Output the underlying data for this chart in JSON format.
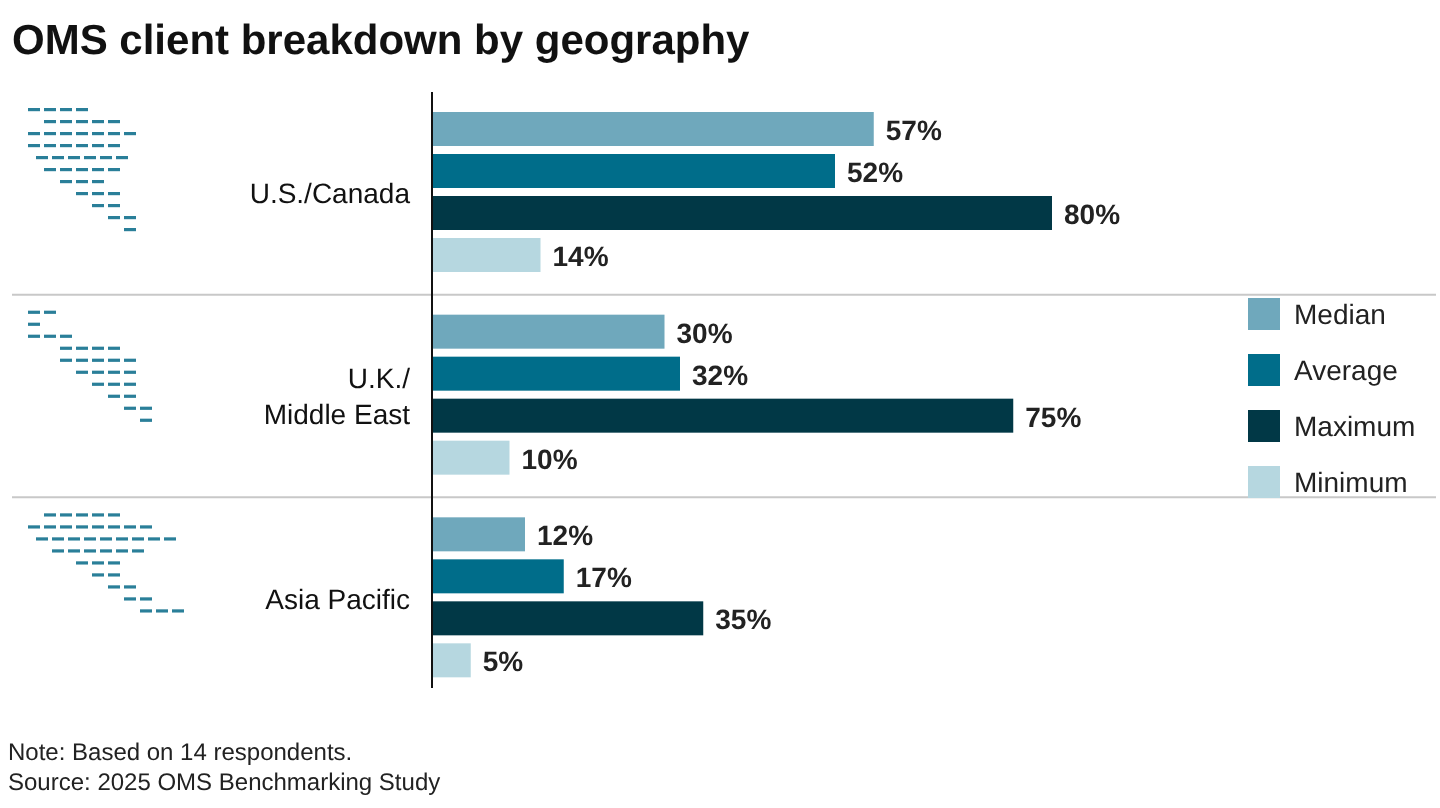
{
  "chart_data": {
    "type": "bar",
    "orientation": "horizontal",
    "title": "OMS client breakdown by geography",
    "categories": [
      "U.S./Canada",
      "U.K./Middle East",
      "Asia Pacific"
    ],
    "series": [
      {
        "name": "Median",
        "color": "#6fa8bc",
        "values": [
          57,
          30,
          12
        ],
        "value_labels": [
          "57%",
          "30%",
          "12%"
        ]
      },
      {
        "name": "Average",
        "color": "#006d8a",
        "values": [
          52,
          32,
          17
        ],
        "value_labels": [
          "52%",
          "32%",
          "17%"
        ]
      },
      {
        "name": "Maximum",
        "color": "#013846",
        "values": [
          80,
          75,
          35
        ],
        "value_labels": [
          "80%",
          "75%",
          "35%"
        ]
      },
      {
        "name": "Minimum",
        "color": "#b6d7e0",
        "values": [
          14,
          10,
          5
        ],
        "value_labels": [
          "14%",
          "10%",
          "5%"
        ]
      }
    ],
    "tick_labels": "y",
    "legend": "right",
    "annotations": [
      "Note: Based on 14 respondents.",
      "Source: 2025 OMS Benchmarking Study"
    ]
  }
}
